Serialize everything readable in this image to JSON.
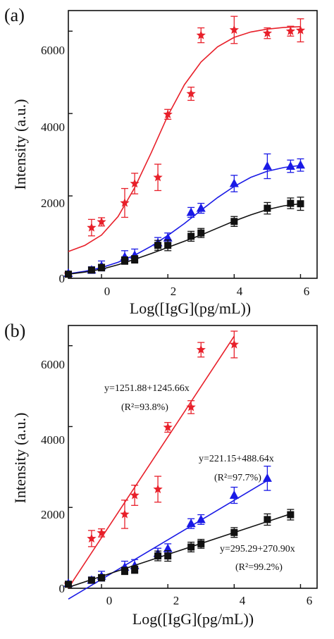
{
  "chart_data": [
    {
      "panel_label": "(a)",
      "type": "scatter",
      "xlabel": "Log([IgG](pg/mL))",
      "ylabel": "Intensity (a.u.)",
      "xlim": [
        -1,
        6.5
      ],
      "ylim": [
        0,
        6500
      ],
      "xticks": [
        "0",
        "2",
        "4",
        "6"
      ],
      "yticks": [
        "0",
        "2000",
        "4000",
        "6000"
      ],
      "fit": "sigmoidal",
      "series": [
        {
          "marker": "star",
          "color": "#e8202a",
          "points": [
            {
              "x": -1,
              "y": 100,
              "err": 0
            },
            {
              "x": -0.3,
              "y": 1230,
              "err": 200
            },
            {
              "x": 0,
              "y": 1370,
              "err": 100
            },
            {
              "x": 0.7,
              "y": 1830,
              "err": 350
            },
            {
              "x": 1,
              "y": 2300,
              "err": 250
            },
            {
              "x": 1.7,
              "y": 2450,
              "err": 320
            },
            {
              "x": 2,
              "y": 3980,
              "err": 120
            },
            {
              "x": 2.7,
              "y": 4480,
              "err": 160
            },
            {
              "x": 3,
              "y": 5900,
              "err": 180
            },
            {
              "x": 4,
              "y": 6030,
              "err": 330
            },
            {
              "x": 5,
              "y": 5950,
              "err": 130
            },
            {
              "x": 5.7,
              "y": 6000,
              "err": 120
            },
            {
              "x": 6,
              "y": 6020,
              "err": 280
            }
          ],
          "curve": [
            [
              -1,
              650
            ],
            [
              -0.5,
              800
            ],
            [
              0,
              1050
            ],
            [
              0.5,
              1500
            ],
            [
              1,
              2200
            ],
            [
              1.5,
              3050
            ],
            [
              2,
              3950
            ],
            [
              2.5,
              4700
            ],
            [
              3,
              5250
            ],
            [
              3.5,
              5620
            ],
            [
              4,
              5850
            ],
            [
              4.5,
              5980
            ],
            [
              5,
              6050
            ],
            [
              5.5,
              6090
            ],
            [
              6,
              6110
            ]
          ]
        },
        {
          "marker": "triangle",
          "color": "#1a1ae6",
          "points": [
            {
              "x": -1,
              "y": 120,
              "err": 0
            },
            {
              "x": -0.3,
              "y": 200,
              "err": 80
            },
            {
              "x": 0,
              "y": 300,
              "err": 120
            },
            {
              "x": 0.7,
              "y": 520,
              "err": 150
            },
            {
              "x": 1,
              "y": 560,
              "err": 150
            },
            {
              "x": 1.7,
              "y": 860,
              "err": 130
            },
            {
              "x": 2,
              "y": 980,
              "err": 120
            },
            {
              "x": 2.7,
              "y": 1600,
              "err": 120
            },
            {
              "x": 3,
              "y": 1700,
              "err": 120
            },
            {
              "x": 4,
              "y": 2300,
              "err": 200
            },
            {
              "x": 5,
              "y": 2720,
              "err": 300
            },
            {
              "x": 5.7,
              "y": 2720,
              "err": 150
            },
            {
              "x": 6,
              "y": 2750,
              "err": 150
            }
          ],
          "curve": [
            [
              -1,
              110
            ],
            [
              -0.5,
              170
            ],
            [
              0,
              260
            ],
            [
              0.5,
              390
            ],
            [
              1,
              560
            ],
            [
              1.5,
              780
            ],
            [
              2,
              1040
            ],
            [
              2.5,
              1330
            ],
            [
              3,
              1650
            ],
            [
              3.5,
              1960
            ],
            [
              4,
              2230
            ],
            [
              4.5,
              2450
            ],
            [
              5,
              2600
            ],
            [
              5.5,
              2690
            ],
            [
              6,
              2740
            ]
          ]
        },
        {
          "marker": "square",
          "color": "#111111",
          "points": [
            {
              "x": -1,
              "y": 100,
              "err": 0
            },
            {
              "x": -0.3,
              "y": 200,
              "err": 70
            },
            {
              "x": 0,
              "y": 260,
              "err": 80
            },
            {
              "x": 0.7,
              "y": 430,
              "err": 90
            },
            {
              "x": 1,
              "y": 460,
              "err": 90
            },
            {
              "x": 1.7,
              "y": 800,
              "err": 120
            },
            {
              "x": 2,
              "y": 800,
              "err": 130
            },
            {
              "x": 2.7,
              "y": 1020,
              "err": 120
            },
            {
              "x": 3,
              "y": 1100,
              "err": 110
            },
            {
              "x": 4,
              "y": 1380,
              "err": 120
            },
            {
              "x": 5,
              "y": 1700,
              "err": 140
            },
            {
              "x": 5.7,
              "y": 1820,
              "err": 130
            },
            {
              "x": 6,
              "y": 1810,
              "err": 160
            }
          ],
          "curve": [
            [
              -1,
              100
            ],
            [
              -0.5,
              150
            ],
            [
              0,
              220
            ],
            [
              0.5,
              330
            ],
            [
              1,
              460
            ],
            [
              1.5,
              600
            ],
            [
              2,
              750
            ],
            [
              2.5,
              900
            ],
            [
              3,
              1050
            ],
            [
              3.5,
              1220
            ],
            [
              4,
              1390
            ],
            [
              4.5,
              1540
            ],
            [
              5,
              1670
            ],
            [
              5.5,
              1760
            ],
            [
              6,
              1810
            ]
          ]
        }
      ]
    },
    {
      "panel_label": "(b)",
      "type": "scatter",
      "xlabel": "Log([IgG](pg/mL))",
      "ylabel": "Intensity (a.u.)",
      "xlim": [
        -1,
        6.5
      ],
      "ylim": [
        0,
        6500
      ],
      "xticks": [
        "0",
        "2",
        "4",
        "6"
      ],
      "yticks": [
        "0",
        "2000",
        "4000",
        "6000"
      ],
      "fit": "linear",
      "series": [
        {
          "marker": "star",
          "color": "#e8202a",
          "equation": "y=1251.88+1245.66x",
          "r2": "(R²=93.8%)",
          "fit_line": [
            [
              -1,
              6.22
            ],
            [
              4,
              6234.5
            ]
          ],
          "points": [
            {
              "x": -1,
              "y": 100,
              "err": 0
            },
            {
              "x": -0.3,
              "y": 1230,
              "err": 200
            },
            {
              "x": 0,
              "y": 1370,
              "err": 100
            },
            {
              "x": 0.7,
              "y": 1830,
              "err": 350
            },
            {
              "x": 1,
              "y": 2300,
              "err": 250
            },
            {
              "x": 1.7,
              "y": 2450,
              "err": 320
            },
            {
              "x": 2,
              "y": 3980,
              "err": 120
            },
            {
              "x": 2.7,
              "y": 4480,
              "err": 160
            },
            {
              "x": 3,
              "y": 5900,
              "err": 180
            },
            {
              "x": 4,
              "y": 6030,
              "err": 330
            }
          ]
        },
        {
          "marker": "triangle",
          "color": "#1a1ae6",
          "equation": "y=221.15+488.64x",
          "r2": "(R²=97.7%)",
          "fit_line": [
            [
              -1,
              -267.49
            ],
            [
              5,
              2664.35
            ]
          ],
          "points": [
            {
              "x": -1,
              "y": 120,
              "err": 0
            },
            {
              "x": -0.3,
              "y": 200,
              "err": 80
            },
            {
              "x": 0,
              "y": 300,
              "err": 120
            },
            {
              "x": 0.7,
              "y": 520,
              "err": 150
            },
            {
              "x": 1,
              "y": 560,
              "err": 150
            },
            {
              "x": 1.7,
              "y": 860,
              "err": 130
            },
            {
              "x": 2,
              "y": 980,
              "err": 120
            },
            {
              "x": 2.7,
              "y": 1600,
              "err": 120
            },
            {
              "x": 3,
              "y": 1700,
              "err": 120
            },
            {
              "x": 4,
              "y": 2300,
              "err": 200
            },
            {
              "x": 5,
              "y": 2720,
              "err": 300
            }
          ]
        },
        {
          "marker": "square",
          "color": "#111111",
          "equation": "y=295.29+270.90x",
          "r2": "(R²=99.2%)",
          "fit_line": [
            [
              -1,
              24.39
            ],
            [
              5.7,
              1839.42
            ]
          ],
          "points": [
            {
              "x": -1,
              "y": 100,
              "err": 0
            },
            {
              "x": -0.3,
              "y": 200,
              "err": 70
            },
            {
              "x": 0,
              "y": 260,
              "err": 80
            },
            {
              "x": 0.7,
              "y": 430,
              "err": 90
            },
            {
              "x": 1,
              "y": 460,
              "err": 90
            },
            {
              "x": 1.7,
              "y": 800,
              "err": 120
            },
            {
              "x": 2,
              "y": 800,
              "err": 130
            },
            {
              "x": 2.7,
              "y": 1020,
              "err": 120
            },
            {
              "x": 3,
              "y": 1100,
              "err": 110
            },
            {
              "x": 4,
              "y": 1380,
              "err": 120
            },
            {
              "x": 5,
              "y": 1700,
              "err": 140
            },
            {
              "x": 5.7,
              "y": 1820,
              "err": 130
            }
          ]
        }
      ]
    }
  ]
}
